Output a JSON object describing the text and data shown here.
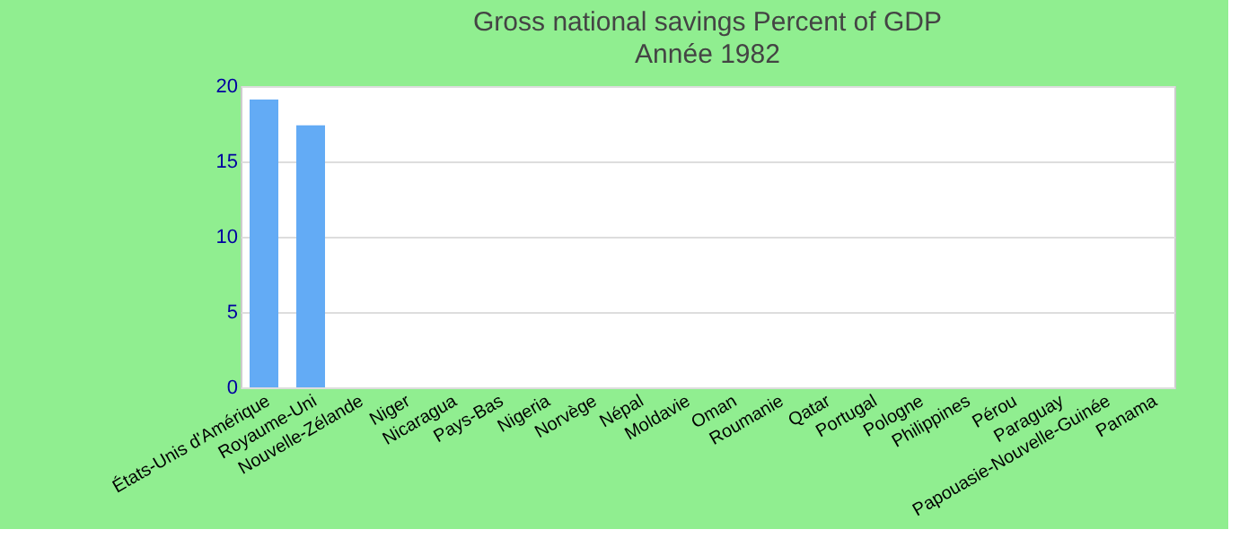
{
  "chart_data": {
    "type": "bar",
    "title": "Gross national savings  Percent of GDP",
    "subtitle": "Année 1982",
    "categories": [
      "États-Unis d'Amérique",
      "Royaume-Uni",
      "Nouvelle-Zélande",
      "Niger",
      "Nicaragua",
      "Pays-Bas",
      "Nigeria",
      "Norvège",
      "Népal",
      "Moldavie",
      "Oman",
      "Roumanie",
      "Qatar",
      "Portugal",
      "Pologne",
      "Philippines",
      "Pérou",
      "Paraguay",
      "Papouasie-Nouvelle-Guinée",
      "Panama"
    ],
    "values": [
      19.1,
      17.4,
      null,
      null,
      null,
      null,
      null,
      null,
      null,
      null,
      null,
      null,
      null,
      null,
      null,
      null,
      null,
      null,
      null,
      null
    ],
    "color": "#63abf5",
    "ylim": [
      0,
      20
    ],
    "yticks": [
      0,
      5,
      10,
      15,
      20
    ],
    "grid": "y"
  }
}
